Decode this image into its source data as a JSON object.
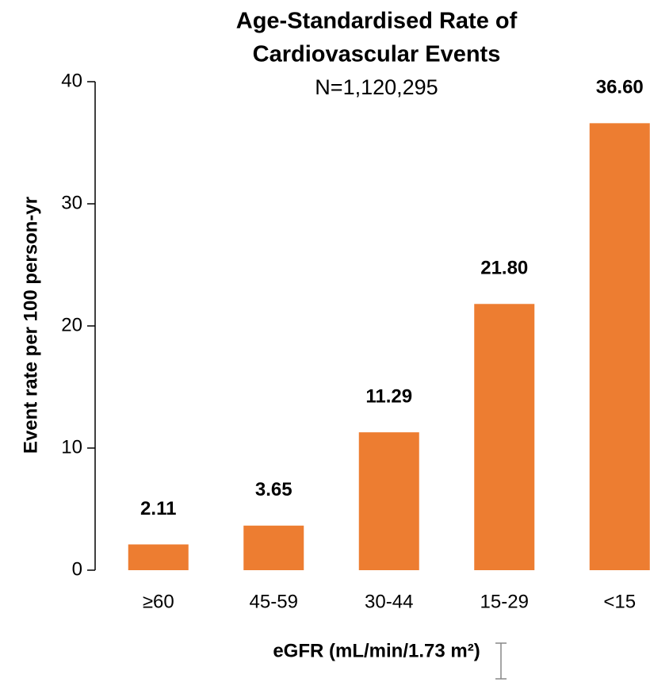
{
  "chart_data": {
    "type": "bar",
    "title": [
      "Age-Standardised Rate of",
      "Cardiovascular Events"
    ],
    "subtitle": "N=1,120,295",
    "y_label": "Event rate per 100 person-yr",
    "x_label": "eGFR (mL/min/1.73 m²)",
    "categories": [
      "≥60",
      "45-59",
      "30-44",
      "15-29",
      "<15"
    ],
    "values": [
      2.11,
      3.65,
      11.29,
      21.8,
      36.6
    ],
    "value_labels": [
      "2.11",
      "3.65",
      "11.29",
      "21.80",
      "36.60"
    ],
    "color": "#ed7d31",
    "ylim": [
      0,
      40
    ],
    "yticks": [
      0,
      10,
      20,
      30,
      40
    ],
    "grid": false
  }
}
